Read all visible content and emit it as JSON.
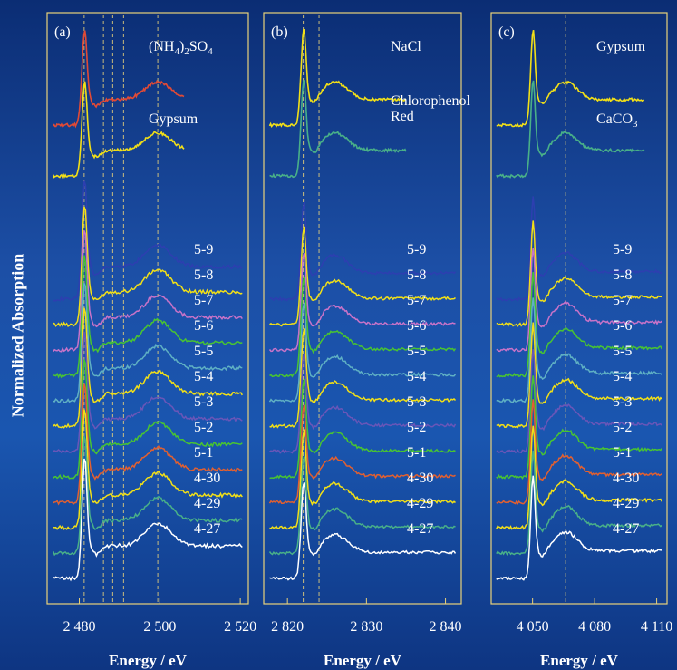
{
  "figure": {
    "ylabel": "Normalized Absorption"
  },
  "chart_data": [
    {
      "type": "line",
      "panel_label": "(a)",
      "xlabel": "Energy / eV",
      "xlim": [
        2472,
        2522
      ],
      "ticks": [
        2480,
        2500,
        2520
      ],
      "tick_labels": [
        "2 480",
        "2 500",
        "2 520"
      ],
      "reference_lines": [
        2481.2,
        2486,
        2488.3,
        2491,
        2499.5
      ],
      "peak_energy": 2481.2,
      "secondary_peak_energy": 2499.5,
      "references": [
        {
          "name": "(NH4)2SO4",
          "label_parts": [
            "(NH",
            "4",
            ")",
            "2",
            "SO",
            "4"
          ],
          "color": "#e24a35",
          "x_end": 2506
        },
        {
          "name": "Gypsum",
          "label_parts": [
            "Gypsum"
          ],
          "color": "#f2e017",
          "x_end": 2506
        }
      ],
      "series": [
        {
          "name": "5-9",
          "color": "#2d3fb0"
        },
        {
          "name": "5-8",
          "color": "#f2e017"
        },
        {
          "name": "5-7",
          "color": "#c873c8"
        },
        {
          "name": "5-6",
          "color": "#49c432"
        },
        {
          "name": "5-5",
          "color": "#5fb0c4"
        },
        {
          "name": "5-4",
          "color": "#f2e017"
        },
        {
          "name": "5-3",
          "color": "#6a56b8"
        },
        {
          "name": "5-2",
          "color": "#49c432"
        },
        {
          "name": "5-1",
          "color": "#e26030"
        },
        {
          "name": "4-30",
          "color": "#f2e017"
        },
        {
          "name": "4-29",
          "color": "#49b088"
        },
        {
          "name": "4-27",
          "color": "#ffffff"
        }
      ]
    },
    {
      "type": "line",
      "panel_label": "(b)",
      "xlabel": "Energy / eV",
      "xlim": [
        2817,
        2842
      ],
      "ticks": [
        2820,
        2830,
        2840
      ],
      "tick_labels": [
        "2 820",
        "2 830",
        "2 840"
      ],
      "reference_lines": [
        2822,
        2824
      ],
      "peak_energy": 2822,
      "secondary_peak_energy": 2826,
      "references": [
        {
          "name": "NaCl",
          "label_parts": [
            "NaCl"
          ],
          "color": "#f2e017",
          "x_end": 2835
        },
        {
          "name": "Chlorophenol Red",
          "label_parts": [
            "Chlorophenol",
            "Red"
          ],
          "color": "#49b088",
          "x_end": 2835
        }
      ],
      "series": [
        {
          "name": "5-9",
          "color": "#2d3fb0"
        },
        {
          "name": "5-8",
          "color": "#f2e017"
        },
        {
          "name": "5-7",
          "color": "#c873c8"
        },
        {
          "name": "5-6",
          "color": "#49c432"
        },
        {
          "name": "5-5",
          "color": "#5fb0c4"
        },
        {
          "name": "5-4",
          "color": "#f2e017"
        },
        {
          "name": "5-3",
          "color": "#6a56b8"
        },
        {
          "name": "5-2",
          "color": "#49c432"
        },
        {
          "name": "5-1",
          "color": "#e26030"
        },
        {
          "name": "4-30",
          "color": "#f2e017"
        },
        {
          "name": "4-29",
          "color": "#49b088"
        },
        {
          "name": "4-27",
          "color": "#ffffff"
        }
      ]
    },
    {
      "type": "line",
      "panel_label": "(c)",
      "xlabel": "Energy / eV",
      "xlim": [
        4030,
        4115
      ],
      "ticks": [
        4050,
        4080,
        4110
      ],
      "tick_labels": [
        "4 050",
        "4 080",
        "4 110"
      ],
      "reference_lines": [
        4066
      ],
      "peak_energy": 4050,
      "secondary_peak_energy": 4066,
      "references": [
        {
          "name": "Gypsum",
          "label_parts": [
            "Gypsum"
          ],
          "color": "#f2e017",
          "x_end": 4104
        },
        {
          "name": "CaCO3",
          "label_parts": [
            "CaCO",
            "3"
          ],
          "color": "#49b088",
          "x_end": 4104
        }
      ],
      "series": [
        {
          "name": "5-9",
          "color": "#2d3fb0"
        },
        {
          "name": "5-8",
          "color": "#f2e017"
        },
        {
          "name": "5-7",
          "color": "#c873c8"
        },
        {
          "name": "5-6",
          "color": "#49c432"
        },
        {
          "name": "5-5",
          "color": "#5fb0c4"
        },
        {
          "name": "5-4",
          "color": "#f2e017"
        },
        {
          "name": "5-3",
          "color": "#6a56b8"
        },
        {
          "name": "5-2",
          "color": "#49c432"
        },
        {
          "name": "5-1",
          "color": "#e26030"
        },
        {
          "name": "4-30",
          "color": "#f2e017"
        },
        {
          "name": "4-29",
          "color": "#49b088"
        },
        {
          "name": "4-27",
          "color": "#ffffff"
        }
      ]
    }
  ]
}
